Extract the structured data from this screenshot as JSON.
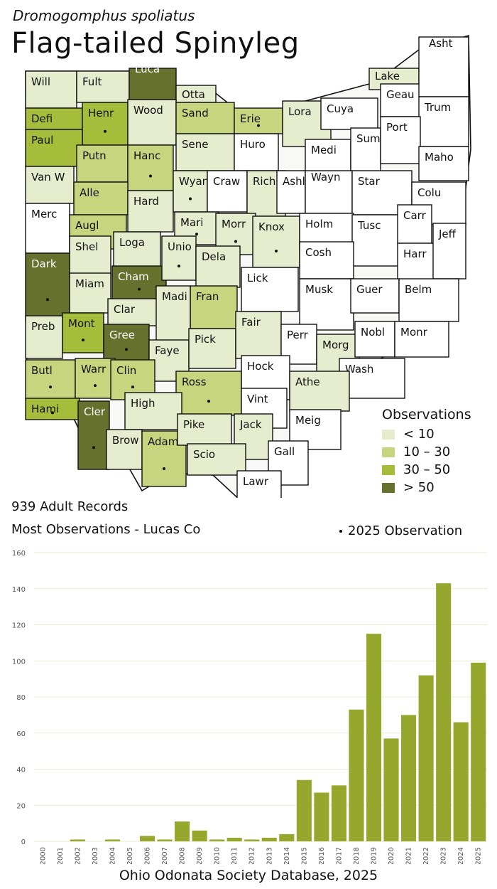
{
  "species": {
    "scientific_name": "Dromogomphus spoliatus",
    "common_name": "Flag-tailed Spinyleg"
  },
  "legend": {
    "title": "Observations",
    "classes": [
      {
        "label": "< 10",
        "color": "#e6ecce"
      },
      {
        "label": "10 – 30",
        "color": "#c6d57e"
      },
      {
        "label": "30 – 50",
        "color": "#a6bd3c"
      },
      {
        "label": "> 50",
        "color": "#66712e"
      }
    ],
    "no_record_color": "#ffffff"
  },
  "stats": {
    "records": "939 Adult Records",
    "most": "Most Observations - Lucas Co",
    "dot_note": "2025  Observation"
  },
  "counties": [
    {
      "name": "Will",
      "class": 0,
      "dot": false
    },
    {
      "name": "Fult",
      "class": 0,
      "dot": false
    },
    {
      "name": "Luca",
      "class": 3,
      "dot": false
    },
    {
      "name": "Otta",
      "class": 0,
      "dot": false
    },
    {
      "name": "Defi",
      "class": 2,
      "dot": false
    },
    {
      "name": "Henr",
      "class": 2,
      "dot": true
    },
    {
      "name": "Wood",
      "class": 0,
      "dot": false
    },
    {
      "name": "Sand",
      "class": 1,
      "dot": false
    },
    {
      "name": "Erie",
      "class": 1,
      "dot": true
    },
    {
      "name": "Lora",
      "class": 0,
      "dot": false
    },
    {
      "name": "Cuya",
      "class": -1,
      "dot": false
    },
    {
      "name": "Lake",
      "class": 0,
      "dot": false
    },
    {
      "name": "Geau",
      "class": -1,
      "dot": false
    },
    {
      "name": "Asht",
      "class": -1,
      "dot": false
    },
    {
      "name": "Trum",
      "class": -1,
      "dot": false
    },
    {
      "name": "Paul",
      "class": 2,
      "dot": false
    },
    {
      "name": "Putn",
      "class": 1,
      "dot": false
    },
    {
      "name": "Hanc",
      "class": 1,
      "dot": true
    },
    {
      "name": "Sene",
      "class": 0,
      "dot": false
    },
    {
      "name": "Huro",
      "class": -1,
      "dot": false
    },
    {
      "name": "Medi",
      "class": -1,
      "dot": false
    },
    {
      "name": "Summ",
      "class": -1,
      "dot": false
    },
    {
      "name": "Port",
      "class": -1,
      "dot": false
    },
    {
      "name": "Maho",
      "class": -1,
      "dot": false
    },
    {
      "name": "Van W",
      "class": 0,
      "dot": false
    },
    {
      "name": "Alle",
      "class": 1,
      "dot": false
    },
    {
      "name": "Hard",
      "class": 0,
      "dot": false
    },
    {
      "name": "Wyan",
      "class": 0,
      "dot": true
    },
    {
      "name": "Craw",
      "class": -1,
      "dot": false
    },
    {
      "name": "Rich",
      "class": 0,
      "dot": false
    },
    {
      "name": "Ashl",
      "class": -1,
      "dot": false
    },
    {
      "name": "Wayn",
      "class": -1,
      "dot": false
    },
    {
      "name": "Star",
      "class": -1,
      "dot": false
    },
    {
      "name": "Colu",
      "class": -1,
      "dot": false
    },
    {
      "name": "Merc",
      "class": -1,
      "dot": false
    },
    {
      "name": "Augl",
      "class": 1,
      "dot": false
    },
    {
      "name": "Shel",
      "class": 0,
      "dot": false
    },
    {
      "name": "Loga",
      "class": 0,
      "dot": false
    },
    {
      "name": "Mari",
      "class": 0,
      "dot": true
    },
    {
      "name": "Morr",
      "class": 0,
      "dot": true
    },
    {
      "name": "Knox",
      "class": 0,
      "dot": true
    },
    {
      "name": "Holm",
      "class": -1,
      "dot": false
    },
    {
      "name": "Tusc",
      "class": -1,
      "dot": false
    },
    {
      "name": "Carr",
      "class": -1,
      "dot": false
    },
    {
      "name": "Harr",
      "class": -1,
      "dot": false
    },
    {
      "name": "Jeff",
      "class": -1,
      "dot": false
    },
    {
      "name": "Dark",
      "class": 3,
      "dot": true
    },
    {
      "name": "Miam",
      "class": 0,
      "dot": false
    },
    {
      "name": "Cham",
      "class": 3,
      "dot": true
    },
    {
      "name": "Unio",
      "class": 0,
      "dot": true
    },
    {
      "name": "Dela",
      "class": 0,
      "dot": false
    },
    {
      "name": "Lick",
      "class": -1,
      "dot": false
    },
    {
      "name": "Cosh",
      "class": -1,
      "dot": false
    },
    {
      "name": "Musk",
      "class": -1,
      "dot": false
    },
    {
      "name": "Guer",
      "class": -1,
      "dot": false
    },
    {
      "name": "Belm",
      "class": -1,
      "dot": false
    },
    {
      "name": "Clar",
      "class": 0,
      "dot": false
    },
    {
      "name": "Fran",
      "class": 1,
      "dot": false
    },
    {
      "name": "Madi",
      "class": 0,
      "dot": false
    },
    {
      "name": "Preb",
      "class": 0,
      "dot": false
    },
    {
      "name": "Mont",
      "class": 2,
      "dot": true
    },
    {
      "name": "Gree",
      "class": 3,
      "dot": true
    },
    {
      "name": "Faye",
      "class": 0,
      "dot": false
    },
    {
      "name": "Pick",
      "class": 0,
      "dot": false
    },
    {
      "name": "Fair",
      "class": 0,
      "dot": false
    },
    {
      "name": "Perr",
      "class": -1,
      "dot": false
    },
    {
      "name": "Morg",
      "class": 0,
      "dot": false
    },
    {
      "name": "Nobl",
      "class": -1,
      "dot": false
    },
    {
      "name": "Monr",
      "class": -1,
      "dot": false
    },
    {
      "name": "Wash",
      "class": -1,
      "dot": false
    },
    {
      "name": "Butl",
      "class": 1,
      "dot": true
    },
    {
      "name": "Warr",
      "class": 1,
      "dot": true
    },
    {
      "name": "Clin",
      "class": 1,
      "dot": true
    },
    {
      "name": "Hock",
      "class": -1,
      "dot": false
    },
    {
      "name": "Athe",
      "class": 0,
      "dot": false
    },
    {
      "name": "Ross",
      "class": 1,
      "dot": true
    },
    {
      "name": "Hami",
      "class": 2,
      "dot": true
    },
    {
      "name": "Cler",
      "class": 3,
      "dot": true
    },
    {
      "name": "High",
      "class": 0,
      "dot": false
    },
    {
      "name": "Vint",
      "class": -1,
      "dot": false
    },
    {
      "name": "Meig",
      "class": -1,
      "dot": false
    },
    {
      "name": "Brow",
      "class": 0,
      "dot": false
    },
    {
      "name": "Adam",
      "class": 1,
      "dot": true
    },
    {
      "name": "Pike",
      "class": 0,
      "dot": false
    },
    {
      "name": "Jack",
      "class": 0,
      "dot": false
    },
    {
      "name": "Gall",
      "class": -1,
      "dot": false
    },
    {
      "name": "Scio",
      "class": 0,
      "dot": false
    },
    {
      "name": "Lawr",
      "class": -1,
      "dot": false
    }
  ],
  "chart_data": {
    "type": "bar",
    "categories": [
      "2000",
      "2001",
      "2002",
      "2003",
      "2004",
      "2005",
      "2006",
      "2007",
      "2008",
      "2009",
      "2010",
      "2011",
      "2012",
      "2013",
      "2014",
      "2015",
      "2016",
      "2017",
      "2018",
      "2019",
      "2020",
      "2021",
      "2022",
      "2023",
      "2024",
      "2025"
    ],
    "values": [
      0,
      0,
      1,
      0,
      1,
      0,
      3,
      1,
      11,
      6,
      1,
      2,
      1,
      2,
      4,
      34,
      27,
      31,
      73,
      115,
      57,
      70,
      92,
      143,
      66,
      99
    ],
    "ylim": [
      0,
      160
    ],
    "yticks": [
      0,
      20,
      40,
      60,
      80,
      100,
      120,
      140,
      160
    ],
    "grid": true,
    "bar_color": "#96a72e",
    "xlabel": "",
    "ylabel": "",
    "title": ""
  },
  "footer": "Ohio Odonata Society Database, 2025"
}
